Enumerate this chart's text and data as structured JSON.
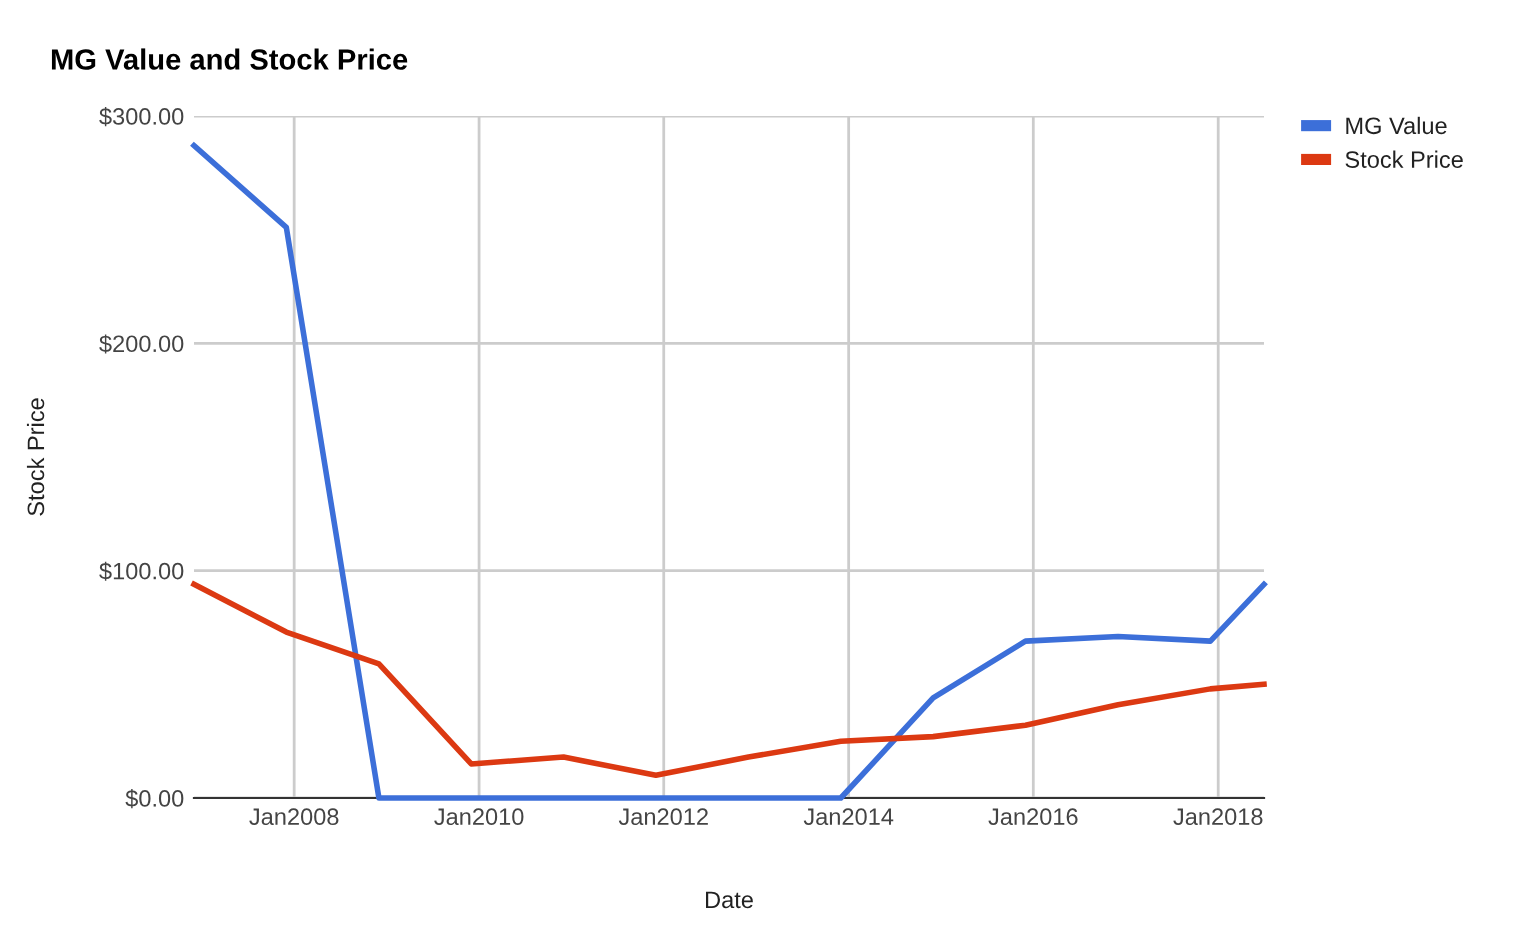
{
  "chart_data": {
    "type": "line",
    "title": "MG Value and Stock Price",
    "xlabel": "Date",
    "ylabel": "Stock Price",
    "x": [
      "2006-12-01",
      "2007-12-01",
      "2008-12-01",
      "2009-12-01",
      "2010-12-01",
      "2011-12-01",
      "2012-12-01",
      "2013-12-01",
      "2014-12-01",
      "2015-12-01",
      "2016-12-01",
      "2017-12-01",
      "2018-07-01"
    ],
    "series": [
      {
        "name": "MG Value",
        "color": "#3c6fd9",
        "values": [
          287,
          251,
          0,
          0,
          0,
          0,
          0,
          0,
          44,
          69,
          71,
          69,
          94
        ]
      },
      {
        "name": "Stock Price",
        "color": "#dc3912",
        "values": [
          94,
          73,
          59,
          15,
          18,
          10,
          18,
          25,
          27,
          32,
          41,
          48,
          50
        ]
      }
    ],
    "xlim": [
      "2006-12-01",
      "2018-07-01"
    ],
    "xticks": [
      {
        "value": "2008-01-01",
        "label": "Jan2008"
      },
      {
        "value": "2010-01-01",
        "label": "Jan2010"
      },
      {
        "value": "2012-01-01",
        "label": "Jan2012"
      },
      {
        "value": "2014-01-01",
        "label": "Jan2014"
      },
      {
        "value": "2016-01-01",
        "label": "Jan2016"
      },
      {
        "value": "2018-01-01",
        "label": "Jan2018"
      }
    ],
    "ylim": [
      0,
      300
    ],
    "yticks": [
      {
        "value": 0,
        "label": "$0.00"
      },
      {
        "value": 100,
        "label": "$100.00"
      },
      {
        "value": 200,
        "label": "$200.00"
      },
      {
        "value": 300,
        "label": "$300.00"
      }
    ],
    "grid": true,
    "legend": "top right",
    "marker": "none",
    "line_style": "solid"
  }
}
